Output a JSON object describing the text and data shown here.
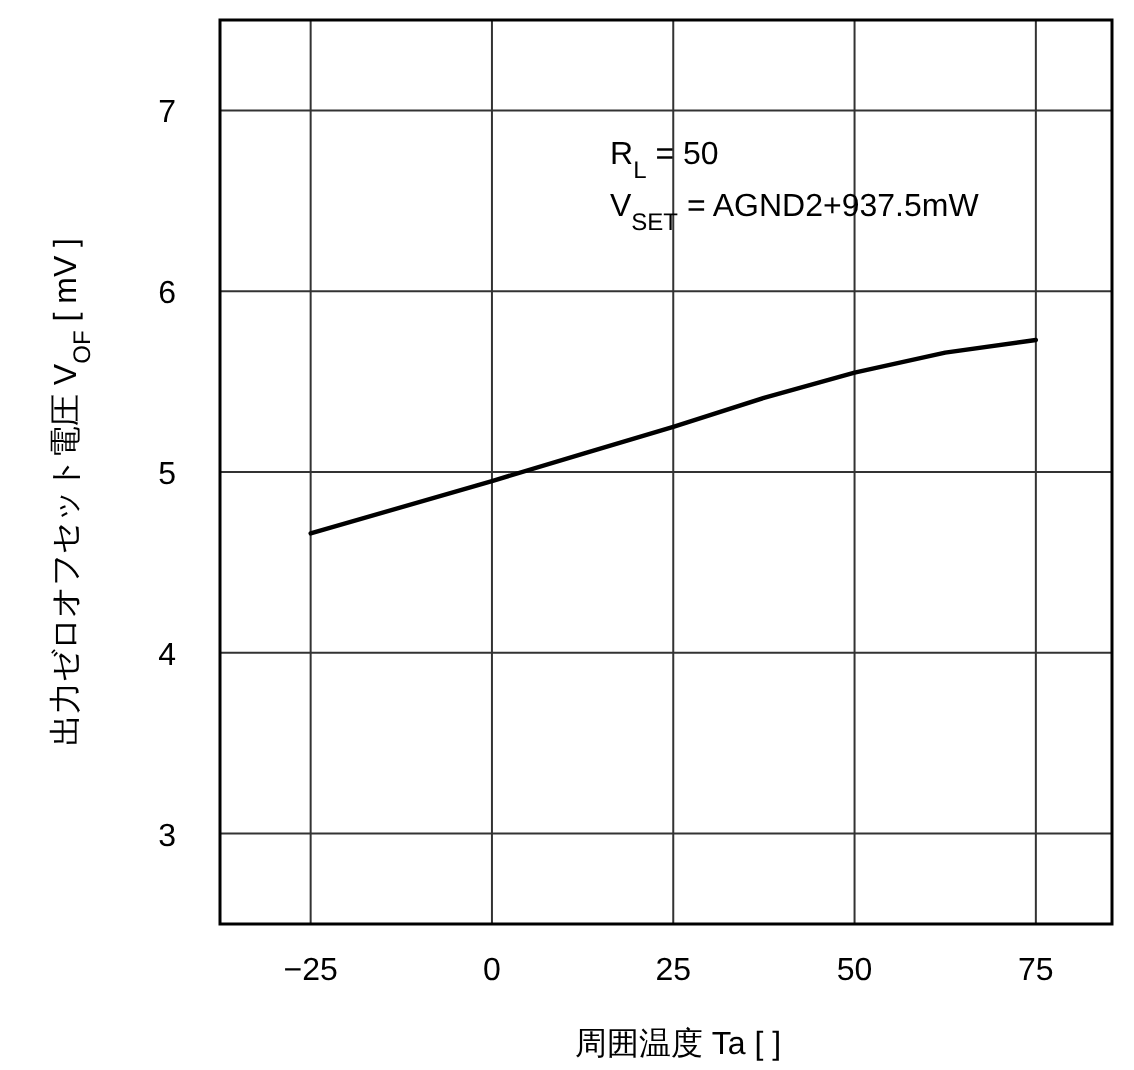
{
  "chart_data": {
    "type": "line",
    "x": [
      -25,
      0,
      12.5,
      25,
      37.5,
      50,
      62.5,
      75
    ],
    "series": [
      {
        "color": "#000000",
        "values": [
          4.66,
          4.95,
          5.1,
          5.25,
          5.41,
          5.55,
          5.66,
          5.73
        ]
      }
    ],
    "xlim": [
      -37.5,
      85.5
    ],
    "ylim": [
      2.5,
      7.5
    ],
    "xticks": [
      {
        "value": -25,
        "label": "−25"
      },
      0,
      25,
      50,
      75
    ],
    "yticks": [
      3,
      4,
      5,
      6,
      7
    ],
    "xlabel": "周囲温度 Ta [     ]",
    "ylabel": "出力ゼロオフセット電圧 V$_{OF}$ [ mV ]",
    "annotations": [
      "R$_{L}$ = 50",
      "V$_{SET}$ = AGND2+937.5mW"
    ],
    "grid": true,
    "marker": "none",
    "line_style": "solid"
  }
}
